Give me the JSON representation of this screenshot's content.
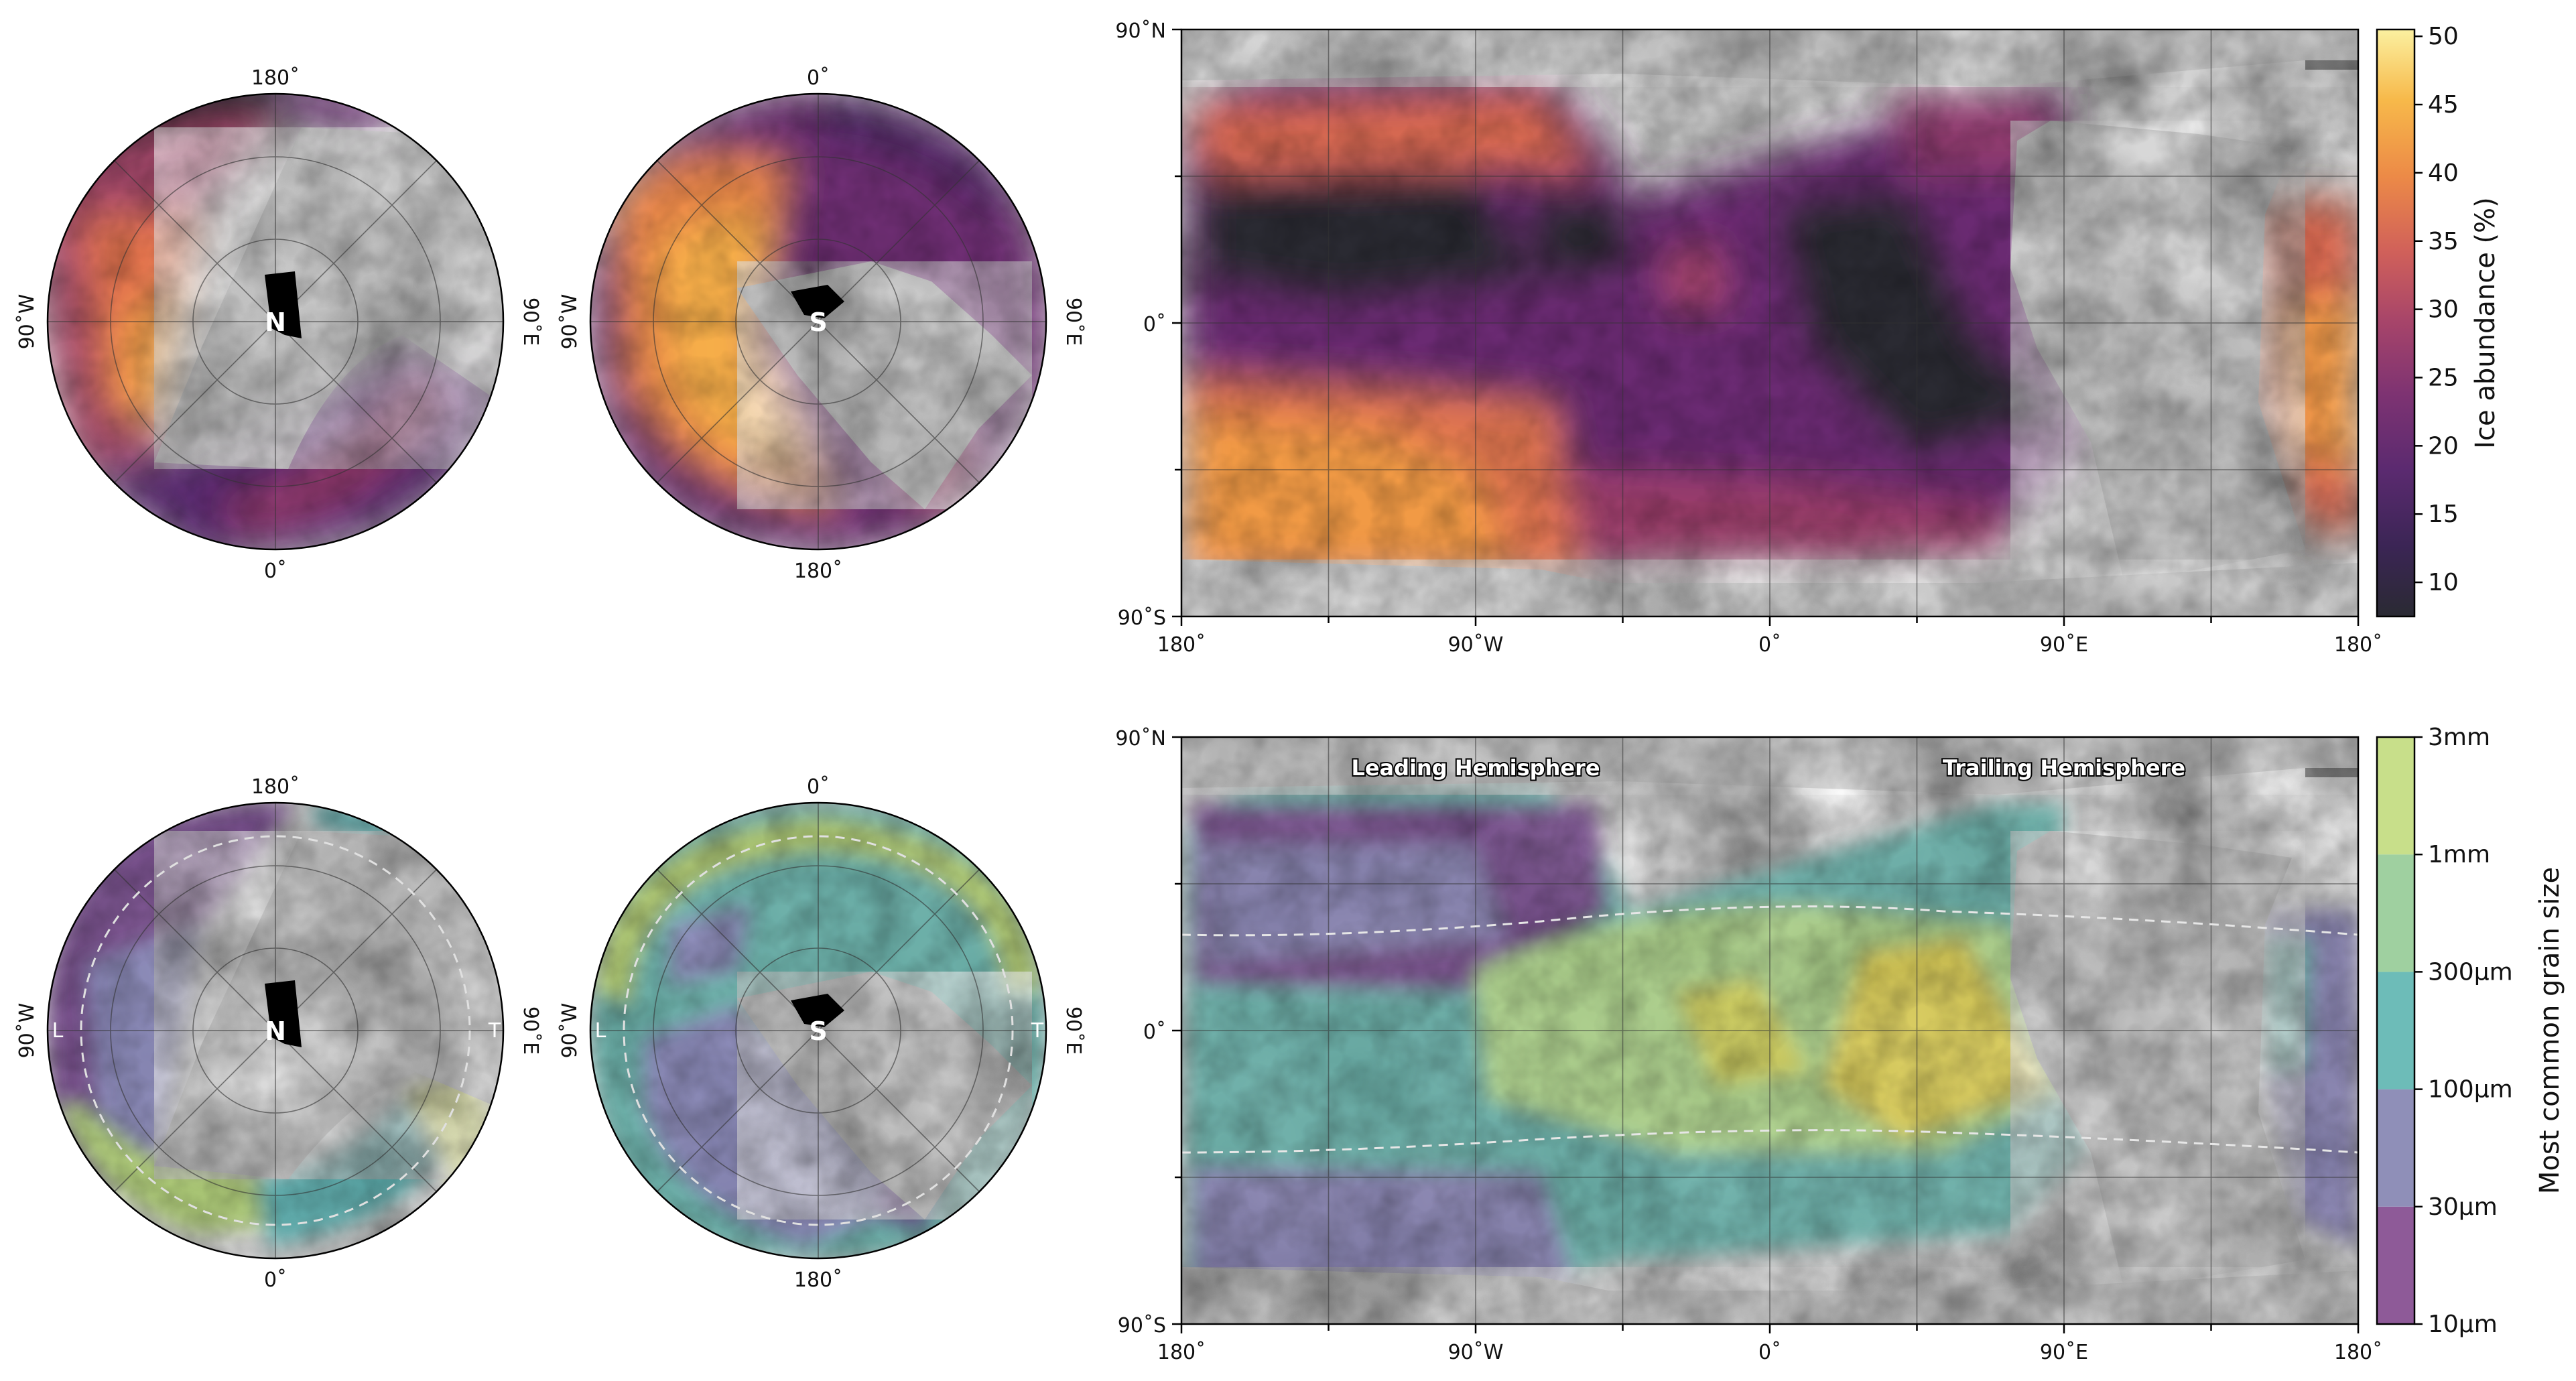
{
  "chart_data": [
    {
      "type": "heatmap",
      "panel": "top-left polar",
      "pole_label": "N",
      "tick_labels": {
        "top": "180˚",
        "bottom": "0˚",
        "left": "90˚W",
        "right": "90˚E"
      },
      "colormap": "inferno"
    },
    {
      "type": "heatmap",
      "panel": "top-middle polar",
      "pole_label": "S",
      "tick_labels": {
        "top": "0˚",
        "bottom": "180˚",
        "left": "90˚W",
        "right": "90˚E"
      },
      "colormap": "inferno"
    },
    {
      "type": "heatmap",
      "panel": "top map",
      "x_ticks": [
        "180˚",
        "90˚W",
        "0˚",
        "90˚E",
        "180˚"
      ],
      "y_ticks": [
        "90˚N",
        "0˚",
        "90˚S"
      ],
      "xlim": [
        -180,
        180
      ],
      "ylim": [
        -90,
        90
      ],
      "grid": true,
      "colorbar": {
        "label": "Ice abundance (%)",
        "ticks": [
          "10",
          "15",
          "20",
          "25",
          "30",
          "35",
          "40",
          "45",
          "50"
        ],
        "range": [
          7.5,
          50.5
        ],
        "colormap": "inferno"
      }
    },
    {
      "type": "heatmap",
      "panel": "bottom-left polar",
      "pole_label": "N",
      "tick_labels": {
        "top": "180˚",
        "bottom": "0˚",
        "left": "90˚W",
        "right": "90˚E"
      },
      "side_labels": {
        "left": "L",
        "right": "T"
      },
      "colormap": "viridis"
    },
    {
      "type": "heatmap",
      "panel": "bottom-middle polar",
      "pole_label": "S",
      "tick_labels": {
        "top": "0˚",
        "bottom": "180˚",
        "left": "90˚W",
        "right": "90˚E"
      },
      "side_labels": {
        "left": "L",
        "right": "T"
      },
      "colormap": "viridis"
    },
    {
      "type": "heatmap",
      "panel": "bottom map",
      "x_ticks": [
        "180˚",
        "90˚W",
        "0˚",
        "90˚E",
        "180˚"
      ],
      "y_ticks": [
        "90˚N",
        "0˚",
        "90˚S"
      ],
      "xlim": [
        -180,
        180
      ],
      "ylim": [
        -90,
        90
      ],
      "grid": true,
      "annotations": [
        "Leading Hemisphere",
        "Trailing Hemisphere"
      ],
      "colorbar": {
        "label": "Most common grain size",
        "ticks": [
          "10µm",
          "30µm",
          "100µm",
          "300µm",
          "1mm",
          "3mm"
        ],
        "colors": [
          "#8e5a98",
          "#8f8fb8",
          "#6dbcb8",
          "#9fd0a0",
          "#c8df8a",
          "#efe27a"
        ]
      }
    }
  ],
  "colors": {
    "inferno": [
      "#2a2a33",
      "#3b2555",
      "#5b2a70",
      "#7e3372",
      "#a6446a",
      "#d0605a",
      "#ec8a47",
      "#f7b94a",
      "#fbe58a"
    ],
    "viridis_overlay": [
      "#5b2f67",
      "#7a74a8",
      "#4aa0a0",
      "#8fc485",
      "#b8cf5b",
      "#e0cf46"
    ]
  }
}
